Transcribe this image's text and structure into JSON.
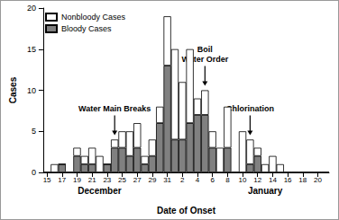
{
  "chart_data": {
    "type": "bar",
    "x_label": "Date of Onset",
    "y_label": "Cases",
    "categories": [
      "15",
      null,
      "17",
      null,
      "19",
      null,
      "21",
      null,
      "23",
      null,
      "25",
      null,
      "27",
      null,
      "29",
      null,
      "31",
      null,
      "2",
      null,
      "4",
      null,
      "6",
      null,
      "8",
      null,
      "10",
      null,
      "12",
      null,
      "14",
      null,
      "16",
      null,
      "18",
      null,
      "20",
      null
    ],
    "series": [
      {
        "name": "Nonbloody Cases",
        "color": "#ffffff",
        "values": [
          0,
          1,
          0,
          0,
          1,
          1,
          2,
          2,
          0,
          1,
          2,
          3,
          3,
          1,
          2,
          2,
          6,
          11,
          7,
          9,
          2,
          3,
          2,
          3,
          5,
          0,
          5,
          3,
          1,
          1,
          2,
          1,
          0,
          0,
          0,
          0,
          0,
          0
        ]
      },
      {
        "name": "Bloody Cases",
        "color": "#808080",
        "values": [
          0,
          0,
          1,
          0,
          2,
          1,
          1,
          0,
          1,
          3,
          3,
          2,
          3,
          1,
          2,
          6,
          13,
          4,
          4,
          6,
          7,
          7,
          3,
          0,
          3,
          0,
          0,
          1,
          2,
          0,
          0,
          0,
          0,
          0,
          0,
          0,
          0,
          0
        ]
      }
    ],
    "stacked": true,
    "ylim": [
      0,
      20
    ],
    "yticks": [
      0,
      5,
      10,
      15,
      20
    ],
    "grid": false,
    "legend": "upper left",
    "month_labels": [
      {
        "text": "December",
        "index": 7
      },
      {
        "text": "January",
        "index": 29
      }
    ],
    "annotations": [
      {
        "text": "Water Main Breaks",
        "index": 9
      },
      {
        "text": "Boil\nWater Order",
        "index": 21
      },
      {
        "text": "Chlorination",
        "index": 27
      }
    ]
  }
}
